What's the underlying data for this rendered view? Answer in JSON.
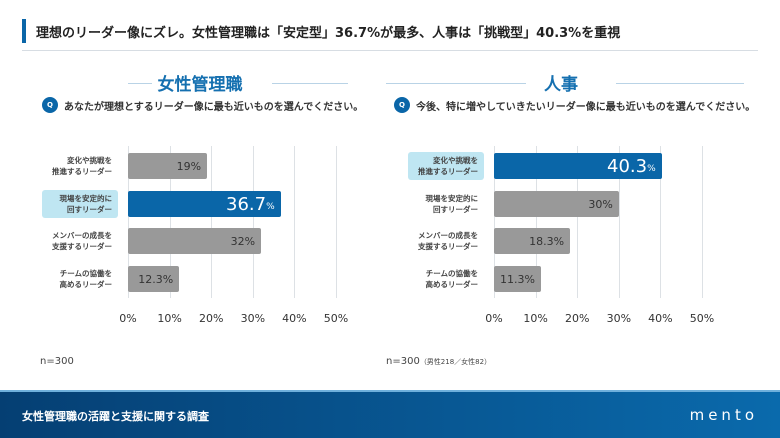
{
  "header": {
    "title": "理想のリーダー像にズレ。女性管理職は「安定型」36.7%が最多、人事は「挑戦型」40.3%を重視"
  },
  "footer": {
    "survey": "女性管理職の活躍と支援に関する調査",
    "logo": "mento"
  },
  "chart_data": [
    {
      "type": "bar",
      "orientation": "horizontal",
      "title": "女性管理職",
      "question": "あなたが理想とするリーダー像に最も近いものを選んでください。",
      "q_icon": "Q",
      "categories": [
        "変化や挑戦を\n推進するリーダー",
        "現場を安定的に\n回すリーダー",
        "メンバーの成長を\n支援するリーダー",
        "チームの協働を\n高めるリーダー"
      ],
      "values": [
        19,
        36.7,
        32,
        12.3
      ],
      "labels": [
        "19%",
        "36.7",
        "32%",
        "12.3%"
      ],
      "highlight": 1,
      "xlim": [
        0,
        50
      ],
      "ticks": [
        "0%",
        "10%",
        "20%",
        "30%",
        "40%",
        "50%"
      ],
      "grid": true,
      "note": "n=300",
      "note_sub": "",
      "colors": {
        "bar": "#999999",
        "highlight": "#0a66a8"
      }
    },
    {
      "type": "bar",
      "orientation": "horizontal",
      "title": "人事",
      "question": "今後、特に増やしていきたいリーダー像に最も近いものを選んでください。",
      "q_icon": "Q",
      "categories": [
        "変化や挑戦を\n推進するリーダー",
        "現場を安定的に\n回すリーダー",
        "メンバーの成長を\n支援するリーダー",
        "チームの協働を\n高めるリーダー"
      ],
      "values": [
        40.3,
        30,
        18.3,
        11.3
      ],
      "labels": [
        "40.3",
        "30%",
        "18.3%",
        "11.3%"
      ],
      "highlight": 0,
      "xlim": [
        0,
        50
      ],
      "ticks": [
        "0%",
        "10%",
        "20%",
        "30%",
        "40%",
        "50%"
      ],
      "grid": true,
      "note": "n=300",
      "note_sub": "（男性218／女性82）",
      "colors": {
        "bar": "#999999",
        "highlight": "#0a66a8"
      }
    }
  ]
}
